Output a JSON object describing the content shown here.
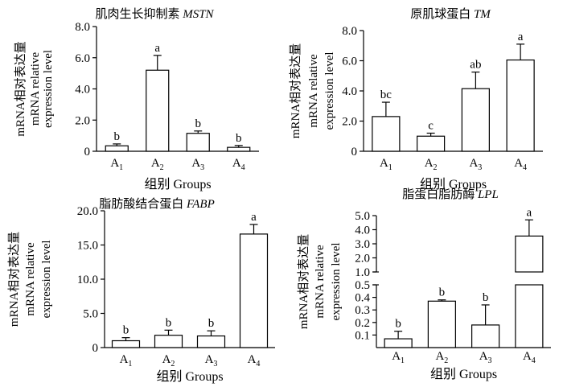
{
  "chart_data": [
    {
      "type": "bar",
      "title": "肌肉生长抑制素",
      "gene": "MSTN",
      "ylabel_cn": "mRNA相对表达量",
      "ylabel_en1": "mRNA relative",
      "ylabel_en2": "expression level",
      "xlabel": "组别 Groups",
      "categories": [
        [
          "A",
          "1"
        ],
        [
          "A",
          "2"
        ],
        [
          "A",
          "3"
        ],
        [
          "A",
          "4"
        ]
      ],
      "values": [
        0.35,
        5.2,
        1.15,
        0.25
      ],
      "errors": [
        0.12,
        0.95,
        0.15,
        0.12
      ],
      "letters": [
        "b",
        "a",
        "b",
        "b"
      ],
      "ylim": [
        0,
        8
      ],
      "ticks": [
        "0",
        "2.0",
        "4.0",
        "6.0",
        "8.0"
      ],
      "tick_values": [
        0,
        2,
        4,
        6,
        8
      ]
    },
    {
      "type": "bar",
      "title": "原肌球蛋白",
      "gene": "TM",
      "ylabel_cn": "mRNA相对表达量",
      "ylabel_en1": "mRNA relative",
      "ylabel_en2": "expression level",
      "xlabel": "组别 Groups",
      "categories": [
        [
          "A",
          "1"
        ],
        [
          "A",
          "2"
        ],
        [
          "A",
          "3"
        ],
        [
          "A",
          "4"
        ]
      ],
      "values": [
        2.3,
        1.0,
        4.15,
        6.05
      ],
      "errors": [
        0.95,
        0.2,
        1.1,
        1.05
      ],
      "letters": [
        "bc",
        "c",
        "ab",
        "a"
      ],
      "ylim": [
        0,
        8
      ],
      "ticks": [
        "0",
        "2.0",
        "4.0",
        "6.0",
        "8.0"
      ],
      "tick_values": [
        0,
        2,
        4,
        6,
        8
      ]
    },
    {
      "type": "bar",
      "title": "脂肪酸结合蛋白",
      "gene": "FABP",
      "ylabel_cn": "mRNA相对表达量",
      "ylabel_en1": "mRNA relative",
      "ylabel_en2": "expression level",
      "xlabel": "组别 Groups",
      "categories": [
        [
          "A",
          "1"
        ],
        [
          "A",
          "2"
        ],
        [
          "A",
          "3"
        ],
        [
          "A",
          "4"
        ]
      ],
      "values": [
        1.0,
        1.8,
        1.7,
        16.6
      ],
      "errors": [
        0.45,
        0.75,
        0.75,
        1.4
      ],
      "letters": [
        "b",
        "b",
        "b",
        "a"
      ],
      "ylim": [
        0,
        20
      ],
      "ticks": [
        "0",
        "5.0",
        "10.0",
        "15.0",
        "20.0"
      ],
      "tick_values": [
        0,
        5,
        10,
        15,
        20
      ]
    },
    {
      "type": "bar",
      "title": "脂蛋白脂肪酶",
      "gene": "LPL",
      "ylabel_cn": "mRNA相对表达量",
      "ylabel_en1": "mRNA relative",
      "ylabel_en2": "expression level",
      "xlabel": "组别 Groups",
      "categories": [
        [
          "A",
          "1"
        ],
        [
          "A",
          "2"
        ],
        [
          "A",
          "3"
        ],
        [
          "A",
          "4"
        ]
      ],
      "values": [
        0.07,
        0.37,
        0.18,
        3.55
      ],
      "errors": [
        0.06,
        0.01,
        0.16,
        1.15
      ],
      "letters": [
        "b",
        "b",
        "b",
        "a"
      ],
      "broken_axis": true,
      "lower_range": [
        0,
        0.5
      ],
      "upper_range": [
        1.0,
        5.0
      ],
      "ticks_lower": [
        "0.1",
        "0.2",
        "0.3",
        "0.4",
        "0.5"
      ],
      "tick_values_lower": [
        0.1,
        0.2,
        0.3,
        0.4,
        0.5
      ],
      "ticks_upper": [
        "1.0",
        "2.0",
        "3.0",
        "4.0",
        "5.0"
      ],
      "tick_values_upper": [
        1,
        2,
        3,
        4,
        5
      ]
    }
  ]
}
